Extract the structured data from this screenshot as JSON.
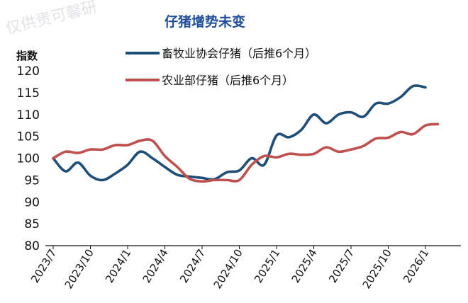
{
  "watermark": "仅供责可馨研",
  "chart_data": {
    "type": "line",
    "title": "仔猪增势未变",
    "ylabel": "指数",
    "xlabel": "",
    "ylim": [
      80,
      120
    ],
    "yticks": [
      80,
      85,
      90,
      95,
      100,
      105,
      110,
      115,
      120
    ],
    "x_tick_labels": [
      "2023/7",
      "2023/10",
      "2024/1",
      "2024/4",
      "2024/7",
      "2024/10",
      "2025/1",
      "2025/4",
      "2025/7",
      "2025/10",
      "2026/1"
    ],
    "grid": false,
    "legend_position": "top",
    "series": [
      {
        "name": "畜牧业协会仔猪（后推6个月）",
        "color": "#1f4e79",
        "values": [
          100,
          97,
          99,
          96,
          95,
          96.5,
          98.5,
          101.5,
          100,
          98,
          96.2,
          95.8,
          95.5,
          95.2,
          96.8,
          97.2,
          100,
          98.5,
          105.2,
          104.8,
          106.5,
          110,
          108,
          110,
          110.5,
          109.5,
          112.5,
          112.5,
          114,
          116.5,
          116.2
        ]
      },
      {
        "name": "农业部仔猪（后推6个月）",
        "color": "#c0504d",
        "values": [
          100,
          101.5,
          101.2,
          102,
          102,
          103,
          103,
          104,
          104,
          100.5,
          98,
          95.3,
          94.7,
          95,
          95,
          95,
          98.5,
          100.5,
          100.2,
          101,
          100.8,
          101,
          102.5,
          101.5,
          102,
          102.8,
          104.5,
          104.7,
          106,
          105.5,
          107.5,
          107.8
        ]
      }
    ]
  }
}
